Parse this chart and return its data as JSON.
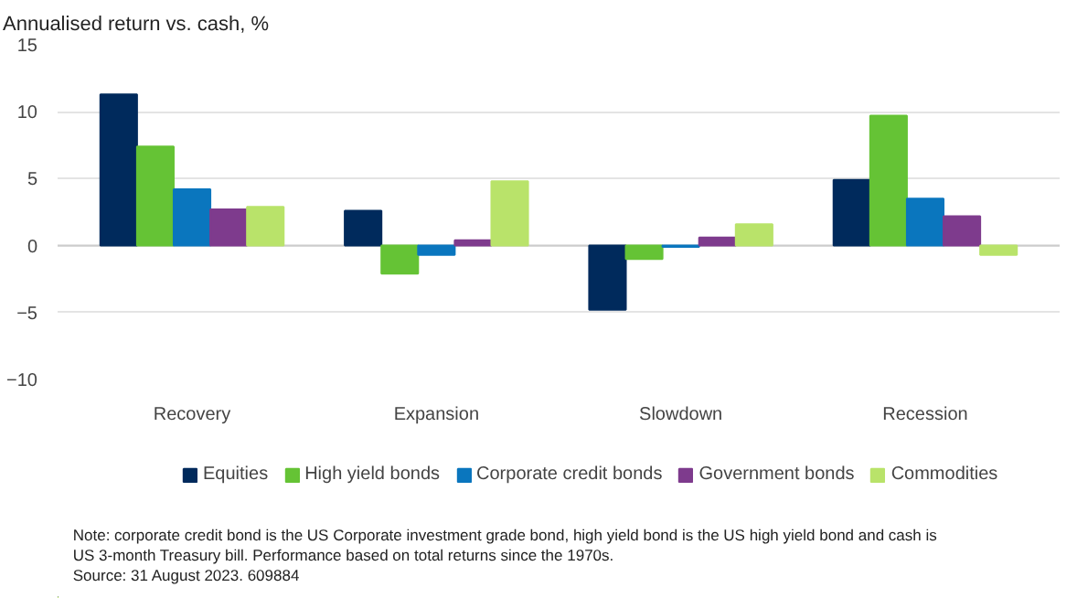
{
  "chart_data": {
    "type": "bar",
    "title": "Annualised return vs. cash, %",
    "categories": [
      "Recovery",
      "Expansion",
      "Slowdown",
      "Recession"
    ],
    "series": [
      {
        "name": "Equities",
        "color": "#002a5c",
        "values": [
          11.3,
          2.6,
          -4.8,
          4.9
        ]
      },
      {
        "name": "High yield bonds",
        "color": "#65c335",
        "values": [
          7.4,
          -2.1,
          -1.0,
          9.7
        ]
      },
      {
        "name": "Corporate credit bonds",
        "color": "#0a76be",
        "values": [
          4.2,
          -0.7,
          -0.1,
          3.5
        ]
      },
      {
        "name": "Government bonds",
        "color": "#7e3b8d",
        "values": [
          2.7,
          0.4,
          0.6,
          2.2
        ]
      },
      {
        "name": "Commodities",
        "color": "#b9e36a",
        "values": [
          2.9,
          4.8,
          1.6,
          -0.7
        ]
      }
    ],
    "ylim": [
      -10,
      15
    ],
    "yticks": [
      -10,
      -5,
      0,
      5,
      10,
      15
    ],
    "grid": "y",
    "legend": "bottom",
    "annotations": [
      "Note: corporate credit bond is the US Corporate investment grade bond, high yield bond is the US high yield bond and cash is",
      "US 3-month Treasury bill. Performance based on total returns since the 1970s.",
      "Source: 31 August 2023. 609884"
    ]
  }
}
